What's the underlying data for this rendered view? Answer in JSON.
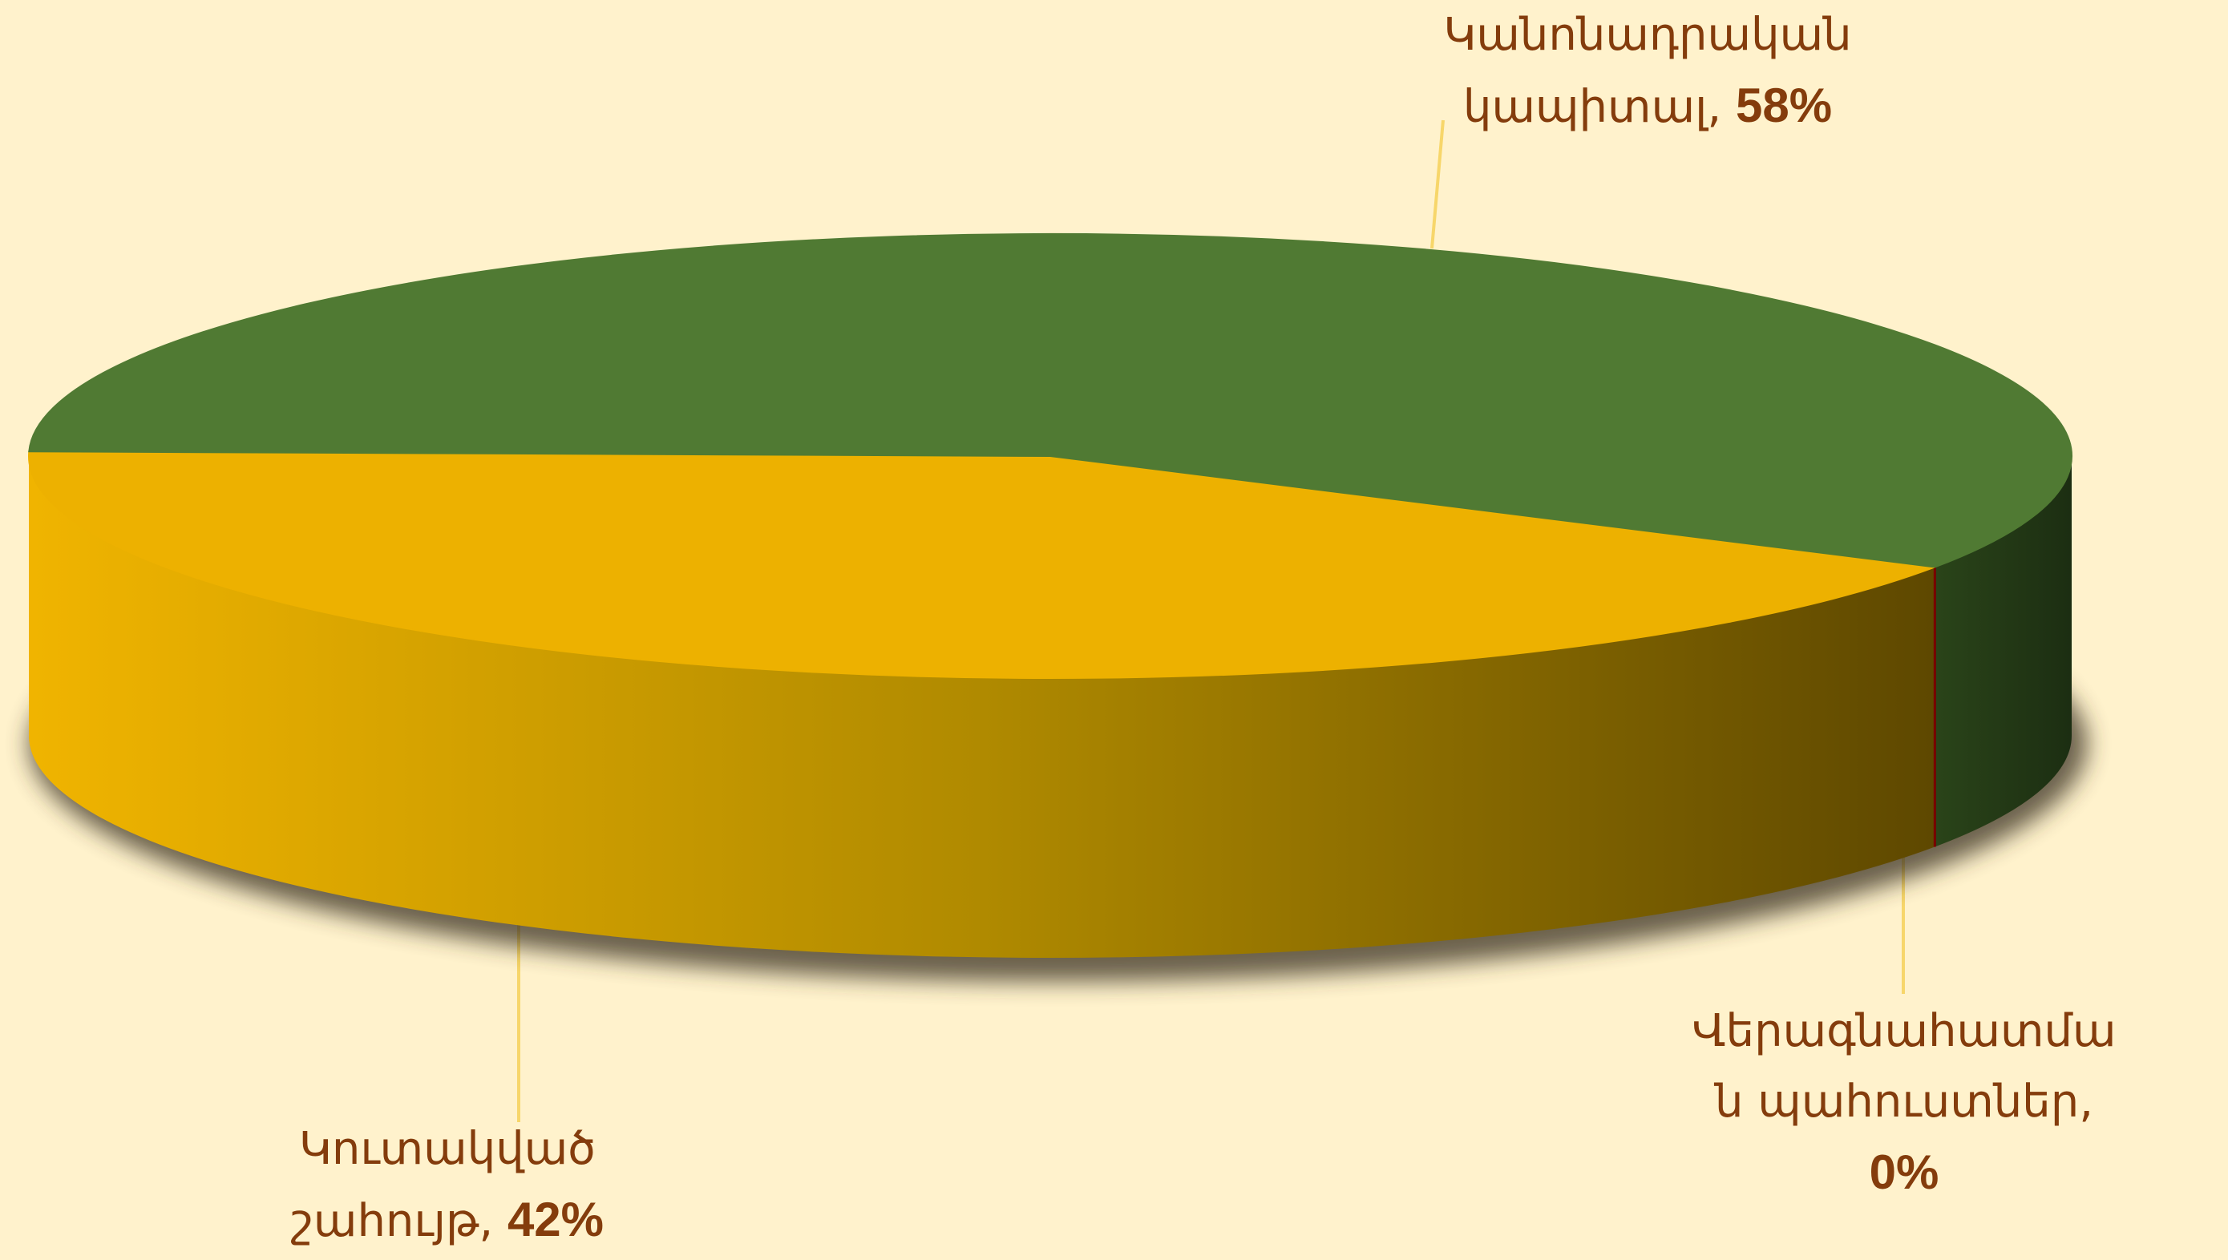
{
  "chart_data": {
    "type": "pie3d",
    "categories": [
      "Կանոնադրական կապիտալ",
      "Վերագնահատման պահուստներ",
      "Կուտակված շահույթ"
    ],
    "values": [
      58,
      0,
      42
    ],
    "value_labels": [
      "58%",
      "0%",
      "42%"
    ],
    "label_separator": ",",
    "colors": [
      "#507a33",
      "#c00000",
      "#edb100"
    ],
    "side_colors": [
      "#1f3314",
      "#7a0000",
      "#5e4800"
    ]
  }
}
